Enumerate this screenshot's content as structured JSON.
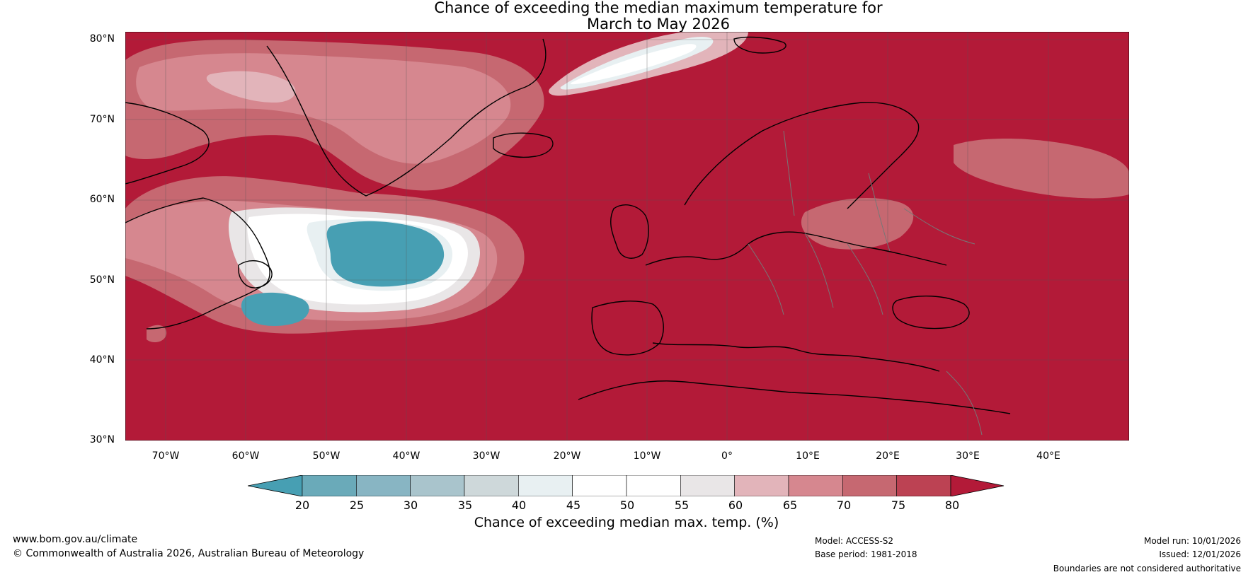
{
  "title_line1": "Chance of exceeding the median maximum temperature for",
  "title_line2": "March to May 2026",
  "lat_labels": [
    "80°N",
    "70°N",
    "60°N",
    "50°N",
    "40°N",
    "30°N"
  ],
  "lon_labels": [
    "70°W",
    "60°W",
    "50°W",
    "40°W",
    "30°W",
    "20°W",
    "10°W",
    "0°",
    "10°E",
    "20°E",
    "30°E",
    "40°E"
  ],
  "colorbar": {
    "ticks": [
      "20",
      "25",
      "30",
      "35",
      "40",
      "45",
      "50",
      "55",
      "60",
      "65",
      "70",
      "75",
      "80"
    ],
    "label": "Chance of exceeding median max. temp. (%)",
    "under_color": "#479fb3",
    "over_color": "#b31a38",
    "bin_colors": [
      "#6aaab9",
      "#88b5c3",
      "#a9c4cc",
      "#ced8da",
      "#e8f0f2",
      "#ffffff",
      "#ffffff",
      "#e9e6e7",
      "#e2b4ba",
      "#d6878f",
      "#c66871",
      "#bc4253"
    ]
  },
  "footer": {
    "website": "www.bom.gov.au/climate",
    "copyright": "© Commonwealth of Australia 2026, Australian Bureau of Meteorology",
    "model": "Model: ACCESS-S2",
    "base_period": "Base period: 1981-2018",
    "model_run": "Model run: 10/01/2026",
    "issued": "Issued: 12/01/2026",
    "disclaimer": "Boundaries are not considered authoritative"
  }
}
